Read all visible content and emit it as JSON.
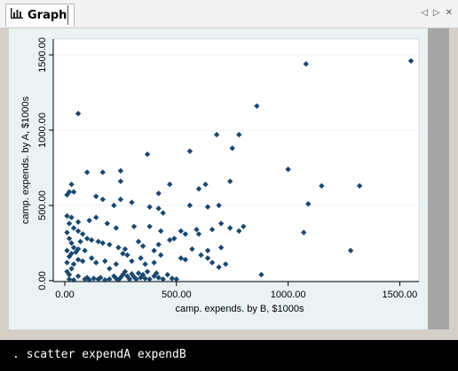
{
  "window": {
    "tab_title": "Graph",
    "tab_icon": "bar-chart-icon",
    "controls": [
      "◁",
      "▷",
      "✕"
    ]
  },
  "console": {
    "command": ". scatter expendA expendB"
  },
  "colors": {
    "plot_background": "#eaf2f3",
    "inner_background": "#ffffff",
    "marker": "#1a476f",
    "scrollbar": "#a6a6a6"
  },
  "chart_data": {
    "type": "scatter",
    "title": "",
    "xlabel": "camp. expends. by B, $1000s",
    "ylabel": "camp. expends. by A, $1000s",
    "xlim": [
      0,
      1550
    ],
    "ylim": [
      0,
      1500
    ],
    "xticks": [
      0,
      500,
      1000,
      1500
    ],
    "xtick_labels": [
      "0.00",
      "500.00",
      "1000.00",
      "1500.00"
    ],
    "yticks": [
      0,
      500,
      1000,
      1500
    ],
    "ytick_labels": [
      "0.00",
      "500.00",
      "1000.00",
      "1500.00"
    ],
    "grid": true,
    "marker": "diamond",
    "points": [
      [
        1550,
        1460
      ],
      [
        1080,
        1440
      ],
      [
        860,
        1160
      ],
      [
        60,
        1110
      ],
      [
        780,
        970
      ],
      [
        680,
        970
      ],
      [
        560,
        860
      ],
      [
        750,
        880
      ],
      [
        370,
        840
      ],
      [
        250,
        730
      ],
      [
        170,
        720
      ],
      [
        100,
        720
      ],
      [
        1000,
        740
      ],
      [
        740,
        660
      ],
      [
        630,
        640
      ],
      [
        1150,
        630
      ],
      [
        1320,
        630
      ],
      [
        600,
        610
      ],
      [
        420,
        580
      ],
      [
        470,
        640
      ],
      [
        250,
        660
      ],
      [
        30,
        640
      ],
      [
        20,
        590
      ],
      [
        10,
        570
      ],
      [
        40,
        590
      ],
      [
        140,
        560
      ],
      [
        170,
        540
      ],
      [
        220,
        500
      ],
      [
        250,
        540
      ],
      [
        300,
        520
      ],
      [
        380,
        490
      ],
      [
        420,
        480
      ],
      [
        440,
        450
      ],
      [
        690,
        500
      ],
      [
        640,
        490
      ],
      [
        1090,
        510
      ],
      [
        560,
        500
      ],
      [
        10,
        430
      ],
      [
        30,
        420
      ],
      [
        60,
        390
      ],
      [
        110,
        400
      ],
      [
        140,
        420
      ],
      [
        190,
        380
      ],
      [
        230,
        350
      ],
      [
        310,
        360
      ],
      [
        380,
        360
      ],
      [
        430,
        330
      ],
      [
        540,
        310
      ],
      [
        600,
        310
      ],
      [
        660,
        340
      ],
      [
        700,
        380
      ],
      [
        740,
        350
      ],
      [
        780,
        330
      ],
      [
        800,
        360
      ],
      [
        520,
        330
      ],
      [
        590,
        340
      ],
      [
        20,
        380
      ],
      [
        40,
        350
      ],
      [
        60,
        330
      ],
      [
        80,
        310
      ],
      [
        100,
        280
      ],
      [
        120,
        270
      ],
      [
        150,
        260
      ],
      [
        170,
        250
      ],
      [
        200,
        240
      ],
      [
        240,
        220
      ],
      [
        270,
        210
      ],
      [
        330,
        260
      ],
      [
        350,
        230
      ],
      [
        470,
        270
      ],
      [
        490,
        280
      ],
      [
        570,
        210
      ],
      [
        640,
        200
      ],
      [
        700,
        220
      ],
      [
        10,
        320
      ],
      [
        20,
        280
      ],
      [
        30,
        250
      ],
      [
        40,
        220
      ],
      [
        60,
        210
      ],
      [
        30,
        180
      ],
      [
        50,
        190
      ],
      [
        20,
        160
      ],
      [
        10,
        120
      ],
      [
        40,
        110
      ],
      [
        60,
        140
      ],
      [
        80,
        130
      ],
      [
        120,
        150
      ],
      [
        140,
        120
      ],
      [
        180,
        130
      ],
      [
        200,
        80
      ],
      [
        230,
        110
      ],
      [
        280,
        170
      ],
      [
        300,
        130
      ],
      [
        340,
        150
      ],
      [
        360,
        110
      ],
      [
        400,
        120
      ],
      [
        430,
        170
      ],
      [
        520,
        150
      ],
      [
        540,
        140
      ],
      [
        610,
        170
      ],
      [
        640,
        150
      ],
      [
        660,
        120
      ],
      [
        690,
        90
      ],
      [
        720,
        110
      ],
      [
        880,
        40
      ],
      [
        1070,
        320
      ],
      [
        1280,
        200
      ],
      [
        10,
        60
      ],
      [
        20,
        40
      ],
      [
        30,
        80
      ],
      [
        60,
        30
      ],
      [
        90,
        10
      ],
      [
        100,
        20
      ],
      [
        110,
        5
      ],
      [
        130,
        15
      ],
      [
        150,
        10
      ],
      [
        160,
        20
      ],
      [
        180,
        5
      ],
      [
        200,
        10
      ],
      [
        220,
        30
      ],
      [
        230,
        15
      ],
      [
        240,
        5
      ],
      [
        250,
        20
      ],
      [
        260,
        40
      ],
      [
        270,
        60
      ],
      [
        280,
        30
      ],
      [
        290,
        10
      ],
      [
        300,
        45
      ],
      [
        310,
        25
      ],
      [
        320,
        10
      ],
      [
        330,
        50
      ],
      [
        340,
        20
      ],
      [
        350,
        40
      ],
      [
        360,
        15
      ],
      [
        370,
        60
      ],
      [
        380,
        10
      ],
      [
        400,
        30
      ],
      [
        410,
        50
      ],
      [
        420,
        20
      ],
      [
        440,
        10
      ],
      [
        460,
        40
      ],
      [
        480,
        15
      ],
      [
        500,
        10
      ],
      [
        20,
        10
      ],
      [
        40,
        5
      ],
      [
        10,
        200
      ],
      [
        70,
        260
      ],
      [
        90,
        200
      ],
      [
        260,
        180
      ],
      [
        400,
        200
      ],
      [
        420,
        240
      ]
    ]
  }
}
